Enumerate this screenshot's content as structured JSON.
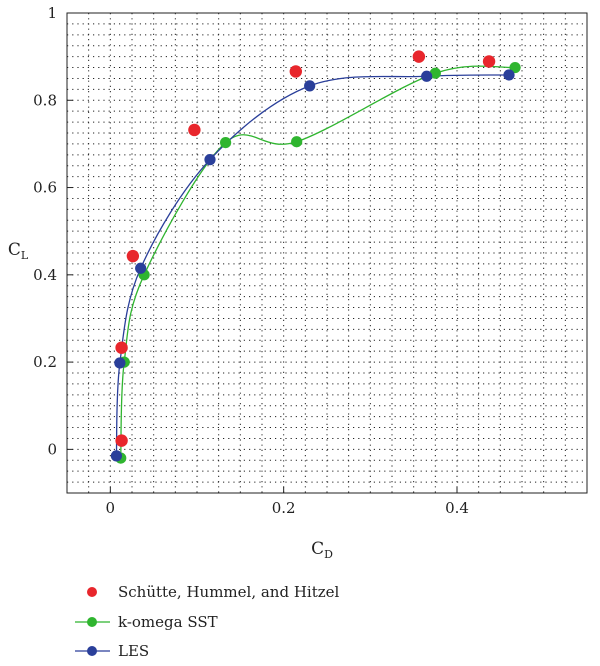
{
  "chart_data": {
    "type": "scatter",
    "xlabel": {
      "main": "C",
      "sub": "D"
    },
    "ylabel": {
      "main": "C",
      "sub": "L"
    },
    "xlim": [
      -0.05,
      0.55
    ],
    "ylim": [
      -0.1,
      1.0
    ],
    "xticks": [
      "0",
      "0.2",
      "0.4"
    ],
    "xtick_values": [
      0,
      0.2,
      0.4
    ],
    "yticks": [
      "0",
      "0.2",
      "0.4",
      "0.6",
      "0.8",
      "1"
    ],
    "ytick_values": [
      0,
      0.2,
      0.4,
      0.6,
      0.8,
      1.0
    ],
    "grid": true,
    "legend_position": "bottom",
    "series": [
      {
        "name": "Schütte, Hummel, and Hitzel",
        "color": "#e8262c",
        "style": "markers",
        "points": [
          [
            0.013,
            0.02
          ],
          [
            0.013,
            0.233
          ],
          [
            0.026,
            0.443
          ],
          [
            0.097,
            0.732
          ],
          [
            0.214,
            0.866
          ],
          [
            0.356,
            0.9
          ],
          [
            0.437,
            0.889
          ]
        ]
      },
      {
        "name": "k-omega SST",
        "color": "#2fb52f",
        "style": "line+markers",
        "points": [
          [
            0.012,
            -0.02
          ],
          [
            0.016,
            0.2
          ],
          [
            0.039,
            0.4
          ],
          [
            0.133,
            0.703
          ],
          [
            0.215,
            0.705
          ],
          [
            0.375,
            0.862
          ],
          [
            0.467,
            0.875
          ]
        ]
      },
      {
        "name": "LES",
        "color": "#2a3f9a",
        "style": "line+markers",
        "points": [
          [
            0.007,
            -0.015
          ],
          [
            0.011,
            0.198
          ],
          [
            0.035,
            0.415
          ],
          [
            0.115,
            0.664
          ],
          [
            0.23,
            0.833
          ],
          [
            0.365,
            0.855
          ],
          [
            0.46,
            0.858
          ]
        ]
      }
    ]
  }
}
